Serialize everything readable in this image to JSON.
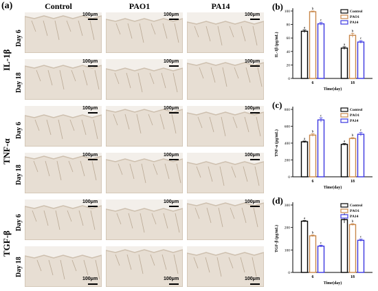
{
  "figure": {
    "label_a": "(a)",
    "columns": [
      "Control",
      "PAO1",
      "PA14"
    ],
    "rows": [
      {
        "cytokine": "IL-1β",
        "days": [
          "Day 6",
          "Day 18"
        ]
      },
      {
        "cytokine": "TNF-α",
        "days": [
          "Day 6",
          "Day 18"
        ]
      },
      {
        "cytokine": "TGF-β",
        "days": [
          "Day 6",
          "Day 18"
        ]
      }
    ],
    "scale_text": "100μm"
  },
  "colors": {
    "control": "#000000",
    "pao1": "#c8874a",
    "pa14": "#3a36e0",
    "tissue": "#e7ded3",
    "tissue_dark": "#cdbfae"
  },
  "chart_data": [
    {
      "panel": "(b)",
      "type": "bar",
      "categories": [
        "6",
        "18"
      ],
      "xlabel": "Time(day)",
      "ylabel": "IL-1β (pg/mL)",
      "ylim": [
        0,
        100
      ],
      "yticks": [
        "0",
        "20",
        "40",
        "60",
        "80",
        "100"
      ],
      "legend": "top-right",
      "series": [
        {
          "name": "Control",
          "values": [
            70,
            45
          ],
          "errors": [
            2,
            2
          ],
          "letters": [
            "a",
            "a"
          ]
        },
        {
          "name": "PAO1",
          "values": [
            99,
            64
          ],
          "errors": [
            1,
            3
          ],
          "letters": [
            "b",
            "b"
          ]
        },
        {
          "name": "PA14",
          "values": [
            81,
            54
          ],
          "errors": [
            2,
            2
          ],
          "letters": [
            "c",
            "c"
          ]
        }
      ]
    },
    {
      "panel": "(c)",
      "type": "bar",
      "categories": [
        "6",
        "18"
      ],
      "xlabel": "Time(day)",
      "ylabel": "TNF-α (pg/mL)",
      "ylim": [
        0,
        800
      ],
      "yticks": [
        "0",
        "200",
        "400",
        "600",
        "800"
      ],
      "legend": "top-right",
      "series": [
        {
          "name": "Control",
          "values": [
            415,
            385
          ],
          "errors": [
            10,
            10
          ],
          "letters": [
            "a",
            "a"
          ]
        },
        {
          "name": "PAO1",
          "values": [
            495,
            455
          ],
          "errors": [
            15,
            10
          ],
          "letters": [
            "b",
            "b"
          ]
        },
        {
          "name": "PA14",
          "values": [
            675,
            505
          ],
          "errors": [
            25,
            20
          ],
          "letters": [
            "c",
            "c"
          ]
        }
      ]
    },
    {
      "panel": "(d)",
      "type": "bar",
      "categories": [
        "6",
        "18"
      ],
      "xlabel": "Time(day)",
      "ylabel": "TGF-β (pg/mL)",
      "ylim": [
        0,
        300
      ],
      "yticks": [
        "0",
        "100",
        "200",
        "300"
      ],
      "legend": "top-right",
      "series": [
        {
          "name": "Control",
          "values": [
            228,
            235
          ],
          "errors": [
            3,
            15
          ],
          "letters": [
            "a",
            "a"
          ]
        },
        {
          "name": "PAO1",
          "values": [
            163,
            213
          ],
          "errors": [
            4,
            4
          ],
          "letters": [
            "b",
            "b"
          ]
        },
        {
          "name": "PA14",
          "values": [
            117,
            143
          ],
          "errors": [
            4,
            5
          ],
          "letters": [
            "c",
            "c"
          ]
        }
      ]
    }
  ]
}
